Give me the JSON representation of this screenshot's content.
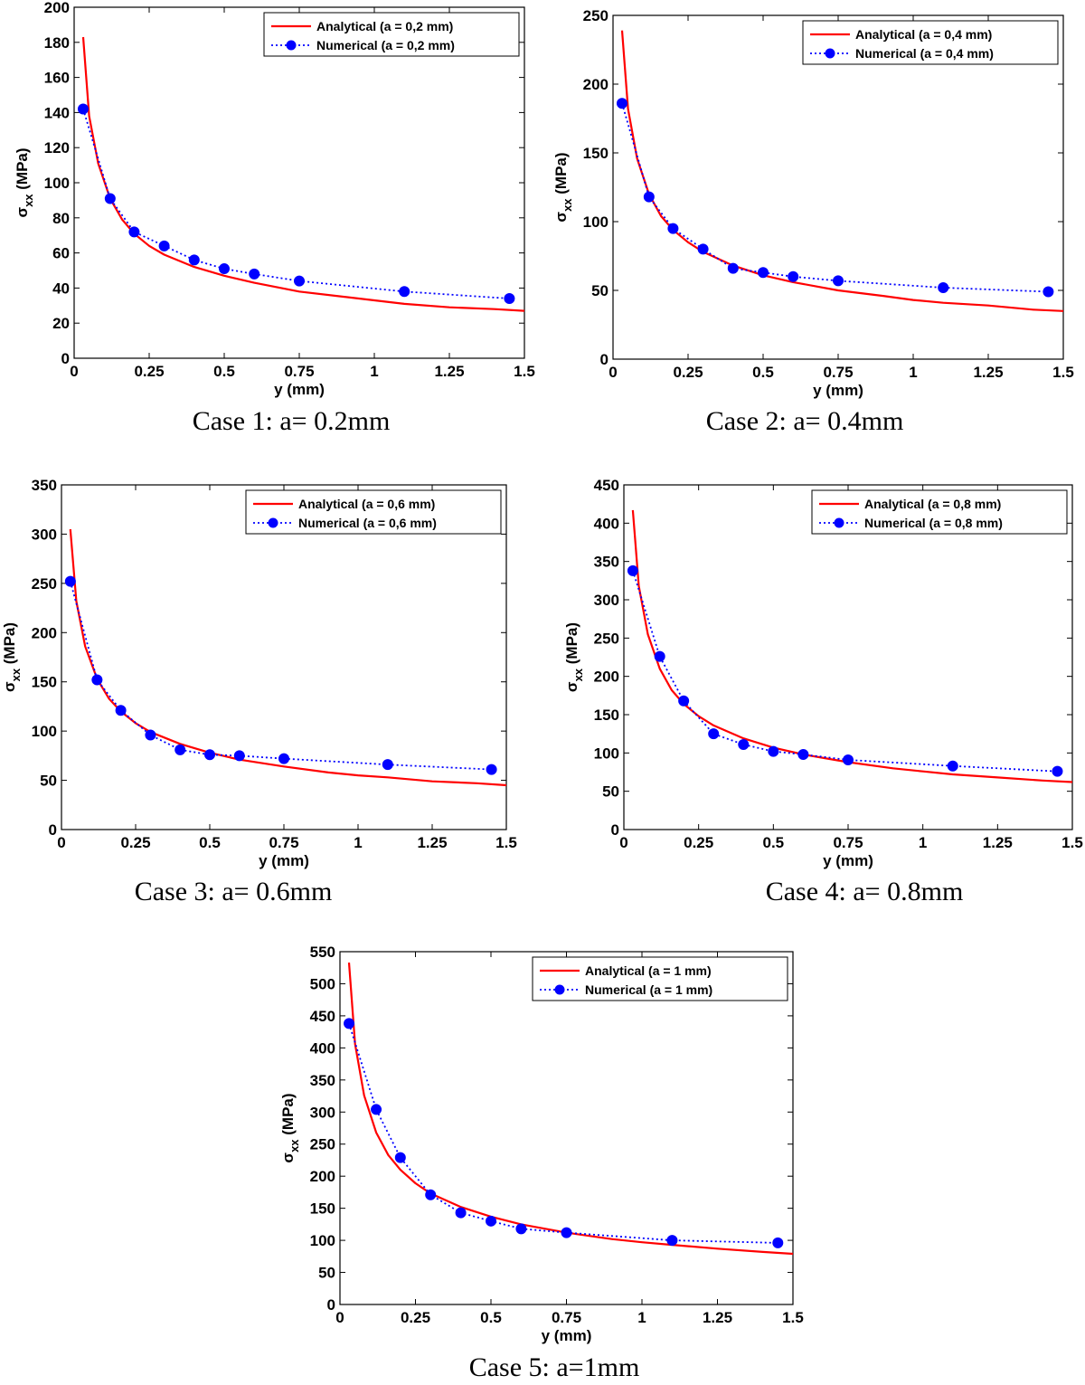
{
  "chart_data": [
    {
      "type": "line",
      "caption": "Case 1: a= 0.2mm",
      "xlabel": "y (mm)",
      "ylabel_main": "σ",
      "ylabel_sub": "xx",
      "ylabel_unit": "(MPa)",
      "xlim": [
        0,
        1.5
      ],
      "ylim": [
        0,
        200
      ],
      "xticks": [
        0,
        0.25,
        0.5,
        0.75,
        1,
        1.25,
        1.5
      ],
      "xtick_labels": [
        "0",
        "0.25",
        "0.5",
        "0.75",
        "1",
        "1.25",
        "1.5"
      ],
      "yticks": [
        0,
        20,
        40,
        60,
        80,
        100,
        120,
        140,
        160,
        180,
        200
      ],
      "ytick_labels": [
        "0",
        "20",
        "40",
        "60",
        "80",
        "100",
        "120",
        "140",
        "160",
        "180",
        "200"
      ],
      "grid": false,
      "legend": "top-right",
      "series": [
        {
          "name": "Analytical (a = 0,2 mm)",
          "style": "solid",
          "color": "#ff0000",
          "x": [
            0.03,
            0.05,
            0.08,
            0.12,
            0.16,
            0.2,
            0.25,
            0.3,
            0.4,
            0.5,
            0.6,
            0.75,
            0.9,
            1.0,
            1.1,
            1.25,
            1.4,
            1.5
          ],
          "y": [
            183,
            138,
            111,
            91,
            79,
            71,
            64,
            59,
            52,
            47,
            43,
            38,
            35,
            33,
            31,
            29,
            28,
            27
          ]
        },
        {
          "name": "Numerical (a = 0,2 mm)",
          "style": "dotted-markers",
          "color": "#0000ff",
          "x": [
            0.03,
            0.12,
            0.2,
            0.3,
            0.4,
            0.5,
            0.6,
            0.75,
            1.1,
            1.45
          ],
          "y": [
            142,
            91,
            72,
            64,
            56,
            51,
            48,
            44,
            38,
            34
          ]
        }
      ]
    },
    {
      "type": "line",
      "caption": "Case 2: a= 0.4mm",
      "xlabel": "y (mm)",
      "ylabel_main": "σ",
      "ylabel_sub": "xx",
      "ylabel_unit": "(MPa)",
      "xlim": [
        0,
        1.5
      ],
      "ylim": [
        0,
        250
      ],
      "xticks": [
        0,
        0.25,
        0.5,
        0.75,
        1,
        1.25,
        1.5
      ],
      "xtick_labels": [
        "0",
        "0.25",
        "0.5",
        "0.75",
        "1",
        "1.25",
        "1.5"
      ],
      "yticks": [
        0,
        50,
        100,
        150,
        200,
        250
      ],
      "ytick_labels": [
        "0",
        "50",
        "100",
        "150",
        "200",
        "250"
      ],
      "grid": false,
      "legend": "top-right",
      "series": [
        {
          "name": "Analytical (a = 0,4 mm)",
          "style": "solid",
          "color": "#ff0000",
          "x": [
            0.03,
            0.05,
            0.08,
            0.12,
            0.16,
            0.2,
            0.25,
            0.3,
            0.4,
            0.5,
            0.6,
            0.75,
            0.9,
            1.0,
            1.1,
            1.25,
            1.4,
            1.5
          ],
          "y": [
            239,
            182,
            146,
            120,
            104,
            94,
            85,
            78,
            68,
            61,
            56,
            50,
            46,
            43,
            41,
            39,
            36,
            35
          ]
        },
        {
          "name": "Numerical (a = 0,4 mm)",
          "style": "dotted-markers",
          "color": "#0000ff",
          "x": [
            0.03,
            0.12,
            0.2,
            0.3,
            0.4,
            0.5,
            0.6,
            0.75,
            1.1,
            1.45
          ],
          "y": [
            186,
            118,
            95,
            80,
            66,
            63,
            60,
            57,
            52,
            49
          ]
        }
      ]
    },
    {
      "type": "line",
      "caption": "Case 3: a= 0.6mm",
      "xlabel": "y (mm)",
      "ylabel_main": "σ",
      "ylabel_sub": "xx",
      "ylabel_unit": "(MPa)",
      "xlim": [
        0,
        1.5
      ],
      "ylim": [
        0,
        350
      ],
      "xticks": [
        0,
        0.25,
        0.5,
        0.75,
        1,
        1.25,
        1.5
      ],
      "xtick_labels": [
        "0",
        "0.25",
        "0.5",
        "0.75",
        "1",
        "1.25",
        "1.5"
      ],
      "yticks": [
        0,
        50,
        100,
        150,
        200,
        250,
        300,
        350
      ],
      "ytick_labels": [
        "0",
        "50",
        "100",
        "150",
        "200",
        "250",
        "300",
        "350"
      ],
      "grid": false,
      "legend": "top-right",
      "series": [
        {
          "name": "Analytical (a = 0,6 mm)",
          "style": "solid",
          "color": "#ff0000",
          "x": [
            0.03,
            0.05,
            0.08,
            0.12,
            0.16,
            0.2,
            0.25,
            0.3,
            0.4,
            0.5,
            0.6,
            0.75,
            0.9,
            1.0,
            1.1,
            1.25,
            1.4,
            1.5
          ],
          "y": [
            305,
            232,
            186,
            153,
            133,
            120,
            108,
            99,
            87,
            78,
            71,
            64,
            58,
            55,
            53,
            49,
            47,
            45
          ]
        },
        {
          "name": "Numerical (a = 0,6 mm)",
          "style": "dotted-markers",
          "color": "#0000ff",
          "x": [
            0.03,
            0.12,
            0.2,
            0.3,
            0.4,
            0.5,
            0.6,
            0.75,
            1.1,
            1.45
          ],
          "y": [
            252,
            152,
            121,
            96,
            81,
            76,
            75,
            72,
            66,
            61
          ]
        }
      ]
    },
    {
      "type": "line",
      "caption": "Case 4: a= 0.8mm",
      "xlabel": "y (mm)",
      "ylabel_main": "σ",
      "ylabel_sub": "xx",
      "ylabel_unit": "(MPa)",
      "xlim": [
        0,
        1.5
      ],
      "ylim": [
        0,
        450
      ],
      "xticks": [
        0,
        0.25,
        0.5,
        0.75,
        1,
        1.25,
        1.5
      ],
      "xtick_labels": [
        "0",
        "0.25",
        "0.5",
        "0.75",
        "1",
        "1.25",
        "1.5"
      ],
      "yticks": [
        0,
        50,
        100,
        150,
        200,
        250,
        300,
        350,
        400,
        450
      ],
      "ytick_labels": [
        "0",
        "50",
        "100",
        "150",
        "200",
        "250",
        "300",
        "350",
        "400",
        "450"
      ],
      "grid": false,
      "legend": "top-right",
      "series": [
        {
          "name": "Analytical (a = 0,8 mm)",
          "style": "solid",
          "color": "#ff0000",
          "x": [
            0.03,
            0.05,
            0.08,
            0.12,
            0.16,
            0.2,
            0.25,
            0.3,
            0.4,
            0.5,
            0.6,
            0.75,
            0.9,
            1.0,
            1.1,
            1.25,
            1.4,
            1.5
          ],
          "y": [
            417,
            318,
            255,
            210,
            182,
            164,
            148,
            136,
            119,
            107,
            98,
            88,
            80,
            76,
            72,
            68,
            64,
            62
          ]
        },
        {
          "name": "Numerical (a = 0,8 mm)",
          "style": "dotted-markers",
          "color": "#0000ff",
          "x": [
            0.03,
            0.12,
            0.2,
            0.3,
            0.4,
            0.5,
            0.6,
            0.75,
            1.1,
            1.45
          ],
          "y": [
            338,
            226,
            168,
            125,
            111,
            102,
            98,
            91,
            83,
            76
          ]
        }
      ]
    },
    {
      "type": "line",
      "caption": "Case 5: a=1mm",
      "xlabel": "y (mm)",
      "ylabel_main": "σ",
      "ylabel_sub": "xx",
      "ylabel_unit": "(MPa)",
      "xlim": [
        0,
        1.5
      ],
      "ylim": [
        0,
        550
      ],
      "xticks": [
        0,
        0.25,
        0.5,
        0.75,
        1,
        1.25,
        1.5
      ],
      "xtick_labels": [
        "0",
        "0.25",
        "0.5",
        "0.75",
        "1",
        "1.25",
        "1.5"
      ],
      "yticks": [
        0,
        50,
        100,
        150,
        200,
        250,
        300,
        350,
        400,
        450,
        500,
        550
      ],
      "ytick_labels": [
        "0",
        "50",
        "100",
        "150",
        "200",
        "250",
        "300",
        "350",
        "400",
        "450",
        "500",
        "550"
      ],
      "grid": false,
      "legend": "top-right",
      "series": [
        {
          "name": "Analytical (a = 1 mm)",
          "style": "solid",
          "color": "#ff0000",
          "x": [
            0.03,
            0.05,
            0.08,
            0.12,
            0.16,
            0.2,
            0.25,
            0.3,
            0.4,
            0.5,
            0.6,
            0.75,
            0.9,
            1.0,
            1.1,
            1.25,
            1.4,
            1.5
          ],
          "y": [
            533,
            406,
            326,
            268,
            233,
            210,
            189,
            173,
            152,
            137,
            125,
            112,
            102,
            97,
            93,
            87,
            82,
            79
          ]
        },
        {
          "name": "Numerical (a = 1 mm)",
          "style": "dotted-markers",
          "color": "#0000ff",
          "x": [
            0.03,
            0.12,
            0.2,
            0.3,
            0.4,
            0.5,
            0.6,
            0.75,
            1.1,
            1.45
          ],
          "y": [
            438,
            304,
            229,
            171,
            143,
            130,
            118,
            112,
            100,
            96
          ]
        }
      ]
    }
  ]
}
